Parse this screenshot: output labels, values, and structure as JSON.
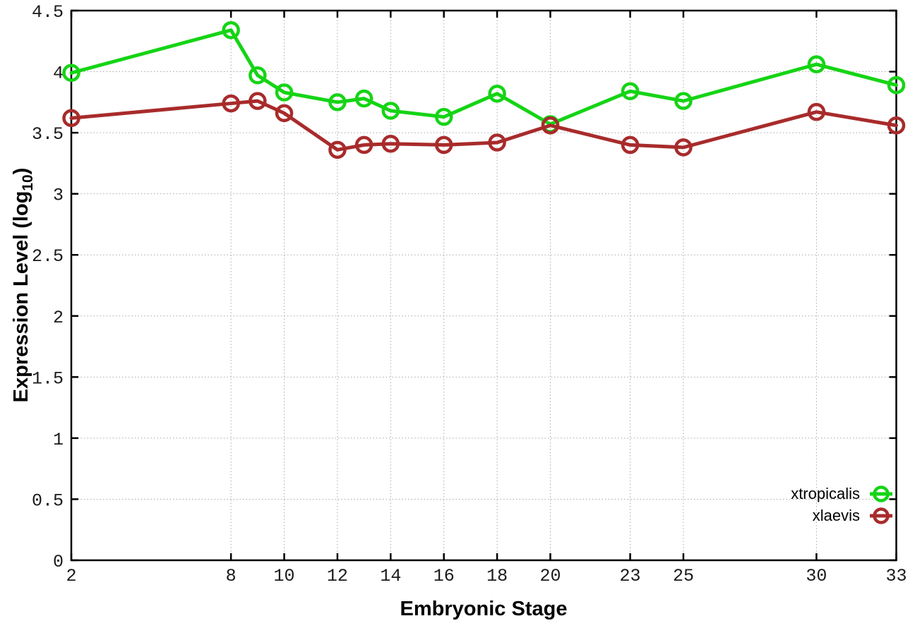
{
  "chart_data": {
    "type": "line",
    "x": [
      2,
      8,
      9,
      10,
      12,
      13,
      14,
      16,
      18,
      20,
      23,
      25,
      30,
      33
    ],
    "series": [
      {
        "name": "xtropicalis",
        "color": "#15d415",
        "values": [
          3.99,
          4.34,
          3.97,
          3.83,
          3.75,
          3.78,
          3.68,
          3.63,
          3.82,
          3.57,
          3.84,
          3.76,
          4.06,
          3.89
        ]
      },
      {
        "name": "xlaevis",
        "color": "#a82b2b",
        "values": [
          3.62,
          3.74,
          3.76,
          3.66,
          3.36,
          3.4,
          3.41,
          3.4,
          3.42,
          3.56,
          3.4,
          3.38,
          3.67,
          3.56
        ]
      }
    ],
    "title": "",
    "xlabel": "Embryonic Stage",
    "ylabel_prefix": "Expression Level (log",
    "ylabel_sub": "10",
    "ylabel_suffix": ")",
    "xlim": [
      2,
      33
    ],
    "ylim": [
      0,
      4.5
    ],
    "xticks": [
      2,
      8,
      10,
      12,
      14,
      16,
      18,
      20,
      23,
      25,
      30,
      33
    ],
    "yticks": [
      "0",
      "0.5",
      "1",
      "1.5",
      "2",
      "2.5",
      "3",
      "3.5",
      "4",
      "4.5"
    ],
    "grid": "dotted",
    "legend_position": "bottom-right",
    "marker": "open-circle"
  },
  "colors": {
    "background": "#ffffff",
    "axis": "#000000",
    "grid": "#a9a9a9",
    "tick_label": "#1a1a1a"
  }
}
